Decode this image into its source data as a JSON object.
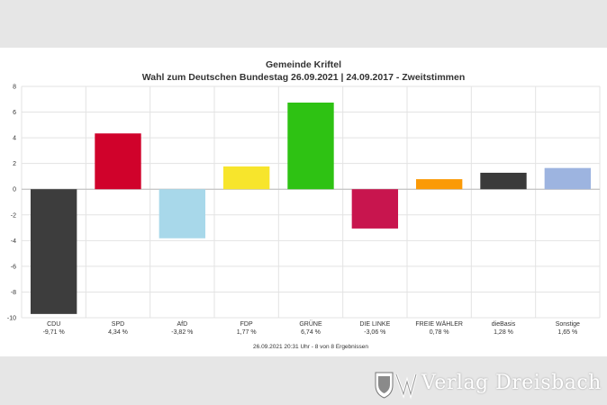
{
  "chart_data": {
    "type": "bar",
    "title": "Gemeinde Kriftel",
    "subtitle": "Wahl zum Deutschen Bundestag 26.09.2021  | 24.09.2017 - Zweitstimmen",
    "categories": [
      "CDU",
      "SPD",
      "AfD",
      "FDP",
      "GRÜNE",
      "DIE LINKE",
      "FREIE WÄHLER",
      "dieBasis",
      "Sonstige"
    ],
    "values": [
      -9.71,
      4.34,
      -3.82,
      1.77,
      6.74,
      -3.06,
      0.78,
      1.28,
      1.65
    ],
    "value_labels": [
      "-9,71 %",
      "4,34 %",
      "-3,82 %",
      "1,77 %",
      "6,74 %",
      "-3,06 %",
      "0,78 %",
      "1,28 %",
      "1,65 %"
    ],
    "colors": [
      "#3d3d3d",
      "#d0022b",
      "#a8d8ea",
      "#f7e52c",
      "#2ec213",
      "#c8154e",
      "#fb9a06",
      "#3a3a3a",
      "#9db4e0"
    ],
    "ylim": [
      -10,
      8
    ],
    "yticks": [
      "8",
      "6",
      "4",
      "2",
      "0",
      "-2",
      "-4",
      "-6",
      "-8",
      "-10"
    ],
    "ytick_values": [
      8,
      6,
      4,
      2,
      0,
      -2,
      -4,
      -6,
      -8,
      -10
    ],
    "grid": true,
    "xlabel": "",
    "ylabel": "",
    "footer": "26.09.2021 20:31 Uhr - 8 von 8 Ergebnissen"
  },
  "watermark": {
    "text": "Verlag Dreisbach",
    "icon": "crest-icon"
  }
}
